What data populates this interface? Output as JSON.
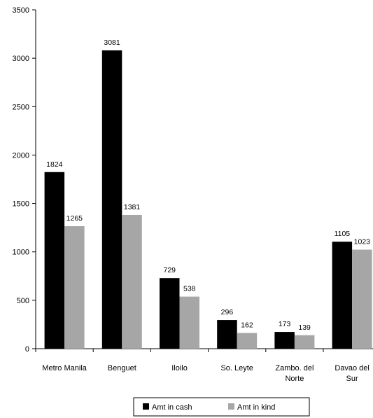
{
  "chart_data": {
    "type": "bar",
    "title": "",
    "xlabel": "",
    "ylabel": "",
    "ylim": [
      0,
      3500
    ],
    "yticks": [
      0,
      500,
      1000,
      1500,
      2000,
      2500,
      3000,
      3500
    ],
    "grid": false,
    "legend_position": "bottom",
    "categories": [
      [
        "Metro Manila"
      ],
      [
        "Benguet"
      ],
      [
        "Iloilo"
      ],
      [
        "So. Leyte"
      ],
      [
        "Zambo. del",
        "Norte"
      ],
      [
        "Davao del",
        "Sur"
      ]
    ],
    "series": [
      {
        "name": "Amt in cash",
        "color": "#000000",
        "values": [
          1824,
          3081,
          729,
          296,
          173,
          1105
        ]
      },
      {
        "name": "Amt in kind",
        "color": "#a6a6a6",
        "values": [
          1265,
          1381,
          538,
          162,
          139,
          1023
        ]
      }
    ]
  }
}
